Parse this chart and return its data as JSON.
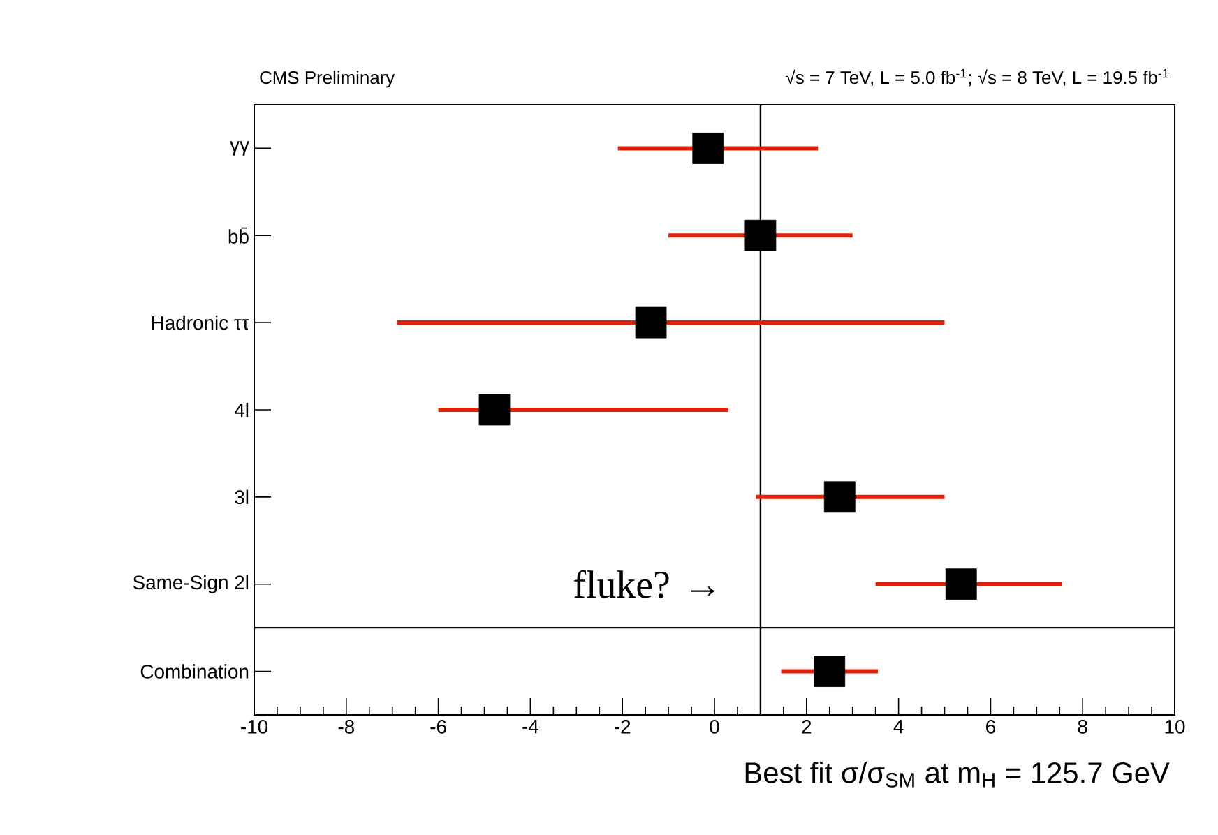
{
  "chart_data": {
    "type": "scatter",
    "title": "CMS Preliminary",
    "subtitle": "√s = 7 TeV, L = 5.0 fb$^{-1}$; √s = 8 TeV, L = 19.5 fb$^{-1}$",
    "xlabel": "Best fit σ/σ$_{SM}$ at m$_{H}$ = 125.7 GeV",
    "categories": [
      "γγ",
      "bb̄",
      "Hadronic ττ",
      "4l",
      "3l",
      "Same-Sign 2l",
      "Combination"
    ],
    "orientation": "horizontal",
    "series": [
      {
        "color": "#000000",
        "values": [
          -0.14,
          1.0,
          -1.38,
          -4.78,
          2.72,
          5.36,
          2.5
        ],
        "errors": [
          [
            -2.1,
            2.25
          ],
          [
            -1.0,
            3.0
          ],
          [
            -6.9,
            5.0
          ],
          [
            -6.0,
            0.3
          ],
          [
            0.9,
            5.0
          ],
          [
            3.5,
            7.55
          ],
          [
            1.45,
            3.55
          ]
        ]
      }
    ],
    "xlim": [
      -10,
      10
    ],
    "xticks": [
      -10,
      -8,
      -6,
      -4,
      -2,
      0,
      2,
      4,
      6,
      8,
      10
    ],
    "ref_lines": [
      {
        "axis": "x",
        "value": 1
      }
    ],
    "annotations": [
      "fluke? →"
    ],
    "marker": "square",
    "grid": false
  }
}
